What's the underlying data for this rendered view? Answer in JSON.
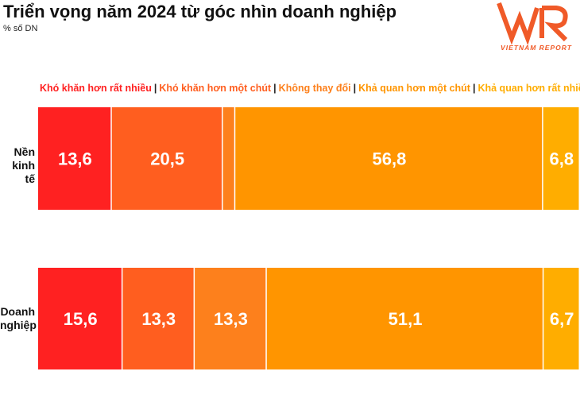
{
  "title": "Triển vọng năm 2024 từ góc nhìn doanh nghiệp",
  "subtitle": "% số DN",
  "logo": {
    "text": "VNR",
    "caption": "VIETNAM REPORT"
  },
  "chart_data": {
    "type": "bar",
    "orientation": "horizontal",
    "stacked": true,
    "title": "Triển vọng năm 2024 từ góc nhìn doanh nghiệp",
    "unit": "% số DN",
    "categories": [
      "Nền kinh tế",
      "Doanh nghiệp"
    ],
    "legend_position": "top",
    "series": [
      {
        "name": "Khó khăn hơn rất nhiều",
        "color": "#ff2121",
        "values": [
          13.6,
          15.6
        ],
        "labels": [
          "13,6",
          "15,6"
        ]
      },
      {
        "name": "Khó khăn hơn một chút",
        "color": "#ff5e1f",
        "values": [
          20.5,
          13.3
        ],
        "labels": [
          "20,5",
          "13,3"
        ]
      },
      {
        "name": "Không thay đổi",
        "color": "#fd801c",
        "values": [
          2.3,
          13.3
        ],
        "labels": [
          "",
          "13,3"
        ]
      },
      {
        "name": "Khả quan hơn một chút",
        "color": "#ff9500",
        "values": [
          56.8,
          51.1
        ],
        "labels": [
          "56,8",
          "51,1"
        ]
      },
      {
        "name": "Khả quan hơn rất nhiều",
        "color": "#ffad00",
        "values": [
          6.8,
          6.7
        ],
        "labels": [
          "6,8",
          "6,7"
        ]
      }
    ],
    "xlim": [
      0,
      100
    ],
    "grid": false
  }
}
